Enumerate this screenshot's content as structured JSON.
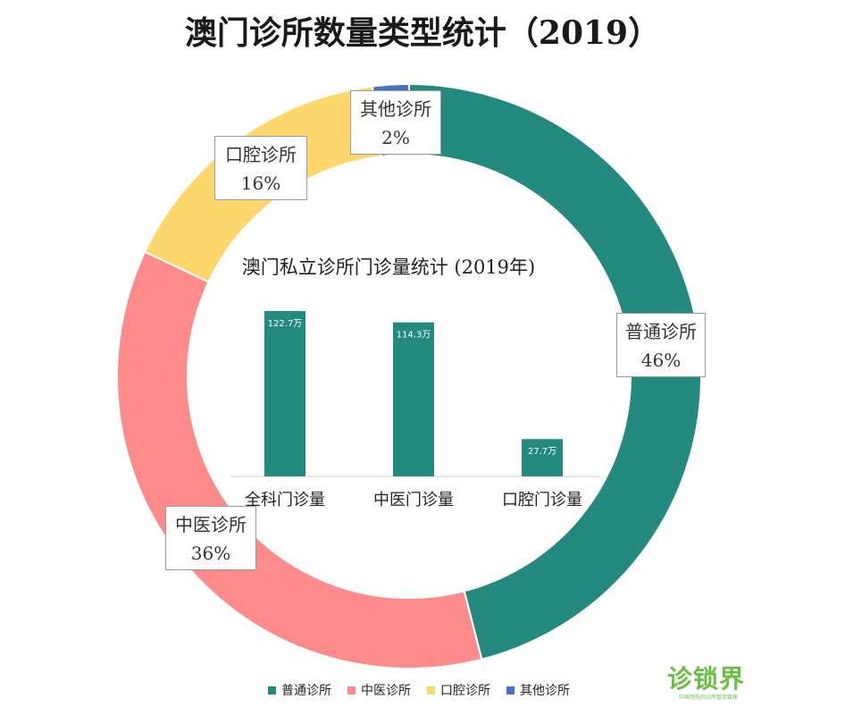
{
  "title": "澳门诊所数量类型统计（2019）",
  "chart_data": [
    {
      "type": "donut",
      "title": "澳门诊所数量类型统计（2019）",
      "slices": [
        {
          "label": "普通诊所",
          "value": 46,
          "display": "46%",
          "color": "#248a80"
        },
        {
          "label": "中医诊所",
          "value": 36,
          "display": "36%",
          "color": "#fd8b8a"
        },
        {
          "label": "口腔诊所",
          "value": 16,
          "display": "16%",
          "color": "#fdd66c"
        },
        {
          "label": "其他诊所",
          "value": 2,
          "display": "2%",
          "color": "#4472c4"
        }
      ],
      "legend_position": "bottom"
    },
    {
      "type": "bar",
      "title": "澳门私立诊所门诊量统计 (2019年)",
      "categories": [
        "全科门诊量",
        "中医门诊量",
        "口腔门诊量"
      ],
      "values": [
        122.7,
        114.3,
        27.7
      ],
      "value_labels": [
        "122.7万",
        "114.3万",
        "27.7万"
      ],
      "color": "#248a80"
    }
  ],
  "logo": {
    "text": "诊锁界",
    "sub": "中国领先的诊所智库媒体"
  }
}
